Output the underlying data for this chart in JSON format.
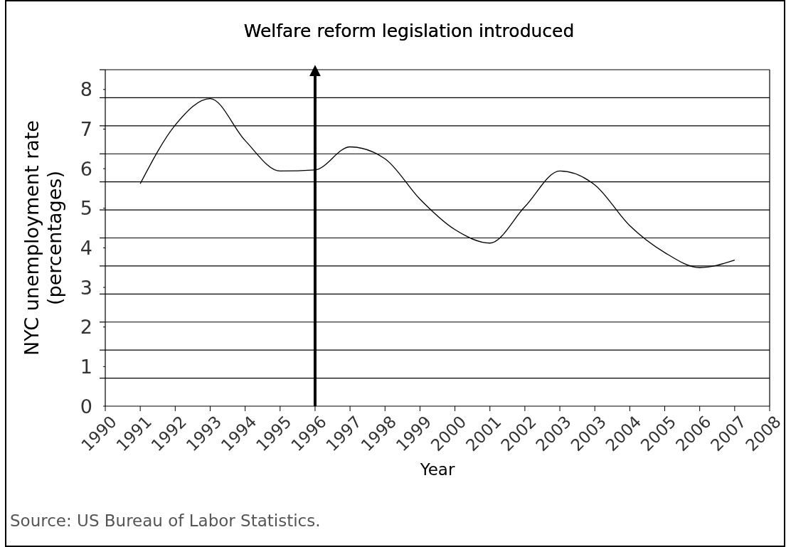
{
  "chart_data": {
    "type": "line",
    "title": "Welfare reform legislation introduced",
    "xlabel": "Year",
    "ylabel": "NYC unemployment rate\n(percentages)",
    "categories": [
      "1990",
      "1991",
      "1992",
      "1993",
      "1994",
      "1995",
      "1996",
      "1997",
      "1998",
      "1999",
      "2000",
      "2001",
      "2002",
      "2003",
      "2003",
      "2004",
      "2005",
      "2006",
      "2007",
      "2008"
    ],
    "series": [
      {
        "color": "#000000",
        "values": [
          null,
          5.62,
          7.1,
          7.77,
          6.71,
          5.94,
          5.97,
          6.55,
          6.25,
          5.23,
          4.46,
          4.12,
          5.04,
          5.94,
          5.59,
          4.56,
          3.88,
          3.5,
          3.69,
          null
        ]
      }
    ],
    "ylim": [
      0,
      8.5
    ],
    "yticks": [
      0,
      1,
      2,
      3,
      4,
      5,
      6,
      7,
      8,
      {
        "value": 0.708,
        "label": null
      },
      {
        "value": 1.417,
        "label": null
      },
      {
        "value": 2.125,
        "label": null
      },
      {
        "value": 2.833,
        "label": null
      },
      {
        "value": 3.542,
        "label": null
      },
      {
        "value": 4.25,
        "label": null
      },
      {
        "value": 4.958,
        "label": null
      },
      {
        "value": 5.667,
        "label": null
      },
      {
        "value": 6.375,
        "label": null
      },
      {
        "value": 7.083,
        "label": null
      },
      {
        "value": 7.792,
        "label": null
      },
      {
        "value": 8.5,
        "label": null
      }
    ],
    "grid": "y",
    "marker": "none",
    "line_style": "solid",
    "ref_lines": [
      {
        "axis": "x",
        "value": "1996",
        "color": "#000000"
      }
    ],
    "annotations": [
      "Source: US Bureau of Labor Statistics."
    ]
  }
}
